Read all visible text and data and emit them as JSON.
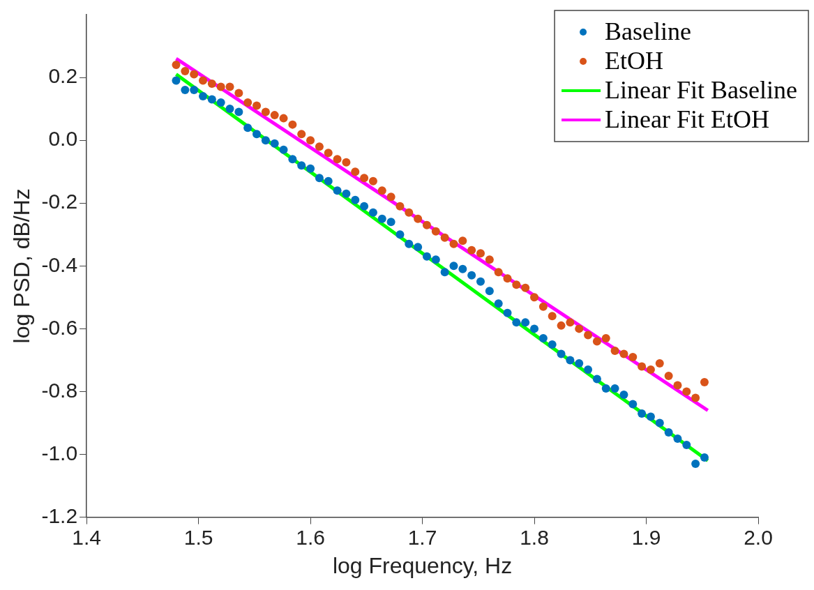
{
  "chart_data": {
    "type": "scatter",
    "xlabel": "log Frequency, Hz",
    "ylabel": "log PSD, dB/Hz",
    "xlim": [
      1.4,
      2.0
    ],
    "xticks": [
      {
        "value": 1.4,
        "label": "1.4"
      },
      {
        "value": 1.5,
        "label": "1.5"
      },
      {
        "value": 1.6,
        "label": "1.6"
      },
      {
        "value": 1.7,
        "label": "1.7"
      },
      {
        "value": 1.8,
        "label": "1.8"
      },
      {
        "value": 1.9,
        "label": "1.9"
      },
      {
        "value": 2.0,
        "label": "2.0"
      }
    ],
    "ylim": [
      -1.2,
      0.4
    ],
    "yticks": [
      {
        "value": -1.2,
        "label": "-1.2"
      },
      {
        "value": -1.0,
        "label": "-1.0"
      },
      {
        "value": -0.8,
        "label": "-0.8"
      },
      {
        "value": -0.6,
        "label": "-0.6"
      },
      {
        "value": -0.4,
        "label": "-0.4"
      },
      {
        "value": -0.2,
        "label": "-0.2"
      },
      {
        "value": 0.0,
        "label": "0.0"
      },
      {
        "value": 0.2,
        "label": "0.2"
      }
    ],
    "grid": false,
    "legend": "top right",
    "series": [
      {
        "name": "Baseline",
        "type": "scatter",
        "marker": "circle",
        "color": "#0072bd",
        "x": [
          1.48,
          1.488,
          1.496,
          1.504,
          1.512,
          1.52,
          1.528,
          1.536,
          1.544,
          1.552,
          1.56,
          1.568,
          1.576,
          1.584,
          1.592,
          1.6,
          1.608,
          1.616,
          1.624,
          1.632,
          1.64,
          1.648,
          1.656,
          1.664,
          1.672,
          1.68,
          1.688,
          1.696,
          1.704,
          1.712,
          1.72,
          1.728,
          1.736,
          1.744,
          1.752,
          1.76,
          1.768,
          1.776,
          1.784,
          1.792,
          1.8,
          1.808,
          1.816,
          1.824,
          1.832,
          1.84,
          1.848,
          1.856,
          1.864,
          1.872,
          1.88,
          1.888,
          1.896,
          1.904,
          1.912,
          1.92,
          1.928,
          1.936,
          1.944,
          1.952
        ],
        "values": [
          0.19,
          0.16,
          0.16,
          0.14,
          0.13,
          0.12,
          0.1,
          0.09,
          0.04,
          0.02,
          0.0,
          -0.01,
          -0.03,
          -0.06,
          -0.08,
          -0.09,
          -0.12,
          -0.13,
          -0.16,
          -0.17,
          -0.19,
          -0.21,
          -0.23,
          -0.25,
          -0.26,
          -0.3,
          -0.33,
          -0.34,
          -0.37,
          -0.38,
          -0.42,
          -0.4,
          -0.41,
          -0.43,
          -0.45,
          -0.48,
          -0.52,
          -0.55,
          -0.58,
          -0.58,
          -0.6,
          -0.63,
          -0.65,
          -0.68,
          -0.7,
          -0.71,
          -0.73,
          -0.76,
          -0.79,
          -0.79,
          -0.81,
          -0.84,
          -0.87,
          -0.88,
          -0.9,
          -0.93,
          -0.95,
          -0.97,
          -1.03,
          -1.01
        ]
      },
      {
        "name": "EtOH",
        "type": "scatter",
        "marker": "circle",
        "color": "#d95319",
        "x": [
          1.48,
          1.488,
          1.496,
          1.504,
          1.512,
          1.52,
          1.528,
          1.536,
          1.544,
          1.552,
          1.56,
          1.568,
          1.576,
          1.584,
          1.592,
          1.6,
          1.608,
          1.616,
          1.624,
          1.632,
          1.64,
          1.648,
          1.656,
          1.664,
          1.672,
          1.68,
          1.688,
          1.696,
          1.704,
          1.712,
          1.72,
          1.728,
          1.736,
          1.744,
          1.752,
          1.76,
          1.768,
          1.776,
          1.784,
          1.792,
          1.8,
          1.808,
          1.816,
          1.824,
          1.832,
          1.84,
          1.848,
          1.856,
          1.864,
          1.872,
          1.88,
          1.888,
          1.896,
          1.904,
          1.912,
          1.92,
          1.928,
          1.936,
          1.944,
          1.952
        ],
        "values": [
          0.24,
          0.22,
          0.21,
          0.19,
          0.18,
          0.17,
          0.17,
          0.15,
          0.12,
          0.11,
          0.09,
          0.08,
          0.07,
          0.05,
          0.02,
          0.0,
          -0.02,
          -0.04,
          -0.06,
          -0.07,
          -0.1,
          -0.12,
          -0.13,
          -0.16,
          -0.18,
          -0.21,
          -0.23,
          -0.25,
          -0.27,
          -0.29,
          -0.31,
          -0.33,
          -0.32,
          -0.35,
          -0.36,
          -0.38,
          -0.42,
          -0.44,
          -0.46,
          -0.47,
          -0.5,
          -0.53,
          -0.56,
          -0.59,
          -0.58,
          -0.6,
          -0.62,
          -0.64,
          -0.63,
          -0.67,
          -0.68,
          -0.69,
          -0.72,
          -0.73,
          -0.71,
          -0.75,
          -0.78,
          -0.8,
          -0.82,
          -0.77
        ]
      },
      {
        "name": "Linear Fit Baseline",
        "type": "line",
        "marker": "none",
        "line_style": "solid",
        "color": "#00ff00",
        "x": [
          1.48,
          1.955
        ],
        "values": [
          0.21,
          -1.02
        ]
      },
      {
        "name": "Linear Fit EtOH",
        "type": "line",
        "marker": "none",
        "line_style": "solid",
        "color": "#ff00ff",
        "x": [
          1.48,
          1.955
        ],
        "values": [
          0.26,
          -0.86
        ]
      }
    ]
  }
}
